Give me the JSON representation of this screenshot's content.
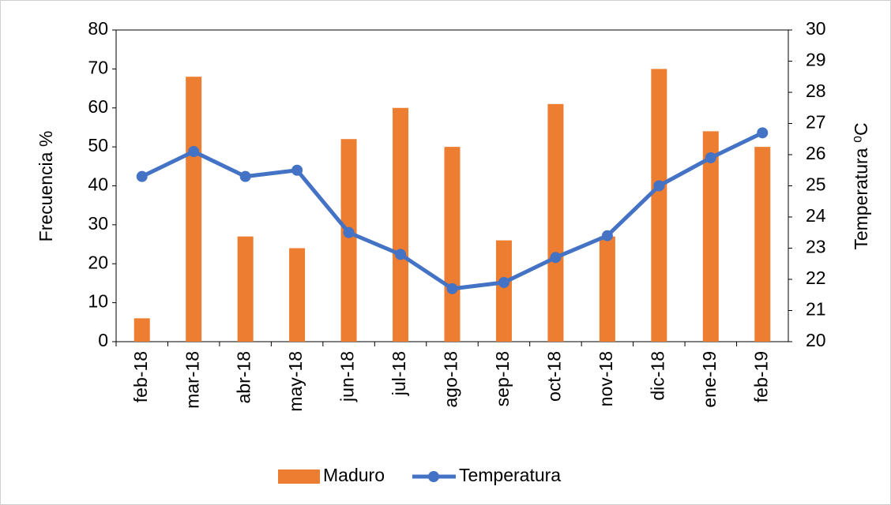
{
  "chart_data": {
    "type": "bar_line",
    "categories": [
      "feb-18",
      "mar-18",
      "abr-18",
      "may-18",
      "jun-18",
      "jul-18",
      "ago-18",
      "sep-18",
      "oct-18",
      "nov-18",
      "dic-18",
      "ene-19",
      "feb-19"
    ],
    "series": [
      {
        "name": "Maduro",
        "type": "bar",
        "color": "#ed7d31",
        "values": [
          6,
          68,
          27,
          24,
          52,
          60,
          50,
          26,
          61,
          27,
          70,
          54,
          50
        ]
      },
      {
        "name": "Temperatura",
        "type": "line",
        "axis": "y2",
        "color": "#4472c4",
        "values": [
          25.3,
          26.1,
          25.3,
          25.5,
          23.5,
          22.8,
          21.7,
          21.9,
          22.7,
          23.4,
          25.0,
          25.9,
          26.7
        ]
      }
    ],
    "y_label": "Frecuencia %",
    "y2_label": "Temperatura ⁰C",
    "ylim": [
      0,
      80
    ],
    "yticks": [
      0,
      10,
      20,
      30,
      40,
      50,
      60,
      70,
      80
    ],
    "y2lim": [
      20,
      30
    ],
    "y2ticks": [
      20,
      21,
      22,
      23,
      24,
      25,
      26,
      27,
      28,
      29,
      30
    ],
    "legend": "bottom"
  }
}
